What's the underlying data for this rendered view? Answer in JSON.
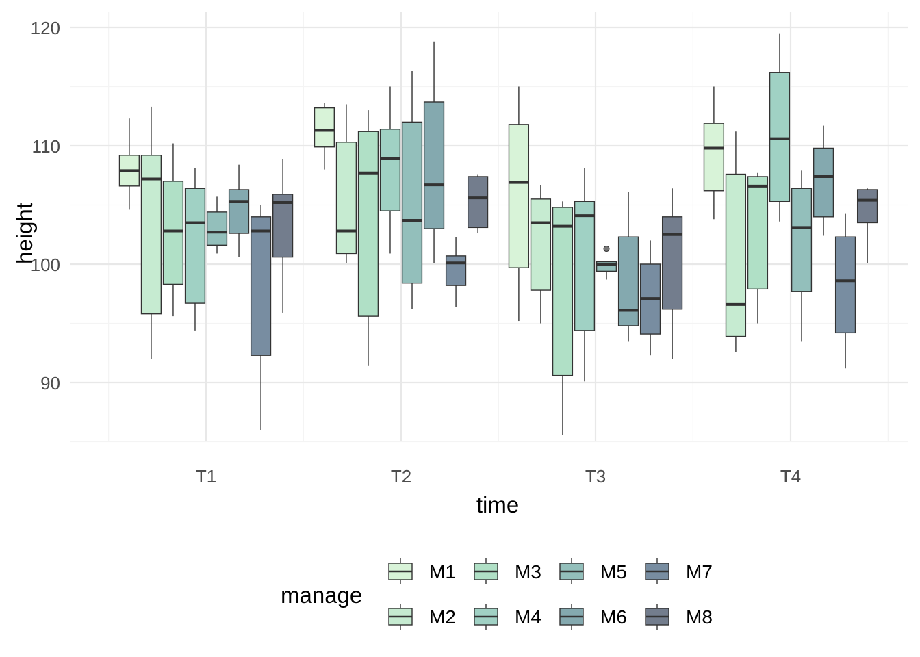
{
  "chart_data": {
    "type": "boxplot",
    "title": "",
    "xlabel": "time",
    "ylabel": "height",
    "categories": [
      "T1",
      "T2",
      "T3",
      "T4"
    ],
    "ylim": [
      84,
      120.5
    ],
    "yticks": [
      90,
      100,
      110,
      120
    ],
    "grid": true,
    "legend": {
      "title": "manage",
      "position": "bottom"
    },
    "series": [
      {
        "name": "M1",
        "color": "#d8f3d8",
        "boxes": [
          {
            "min": 104.6,
            "q1": 106.6,
            "median": 107.9,
            "q3": 109.2,
            "max": 112.3
          },
          {
            "min": 108.0,
            "q1": 109.9,
            "median": 111.3,
            "q3": 113.2,
            "max": 113.6
          },
          {
            "min": 95.2,
            "q1": 99.7,
            "median": 106.9,
            "q3": 111.8,
            "max": 115.0
          },
          {
            "min": 103.8,
            "q1": 106.2,
            "median": 109.8,
            "q3": 111.9,
            "max": 115.0
          }
        ]
      },
      {
        "name": "M2",
        "color": "#c6ebd1",
        "boxes": [
          {
            "min": 92.0,
            "q1": 95.8,
            "median": 107.2,
            "q3": 109.2,
            "max": 113.3
          },
          {
            "min": 100.1,
            "q1": 100.9,
            "median": 102.8,
            "q3": 110.3,
            "max": 113.5
          },
          {
            "min": 95.0,
            "q1": 97.8,
            "median": 103.5,
            "q3": 105.5,
            "max": 106.7
          },
          {
            "min": 92.6,
            "q1": 93.9,
            "median": 96.6,
            "q3": 107.6,
            "max": 111.2
          }
        ]
      },
      {
        "name": "M3",
        "color": "#b0e0c6",
        "boxes": [
          {
            "min": 95.6,
            "q1": 98.3,
            "median": 102.8,
            "q3": 107.0,
            "max": 110.2
          },
          {
            "min": 91.4,
            "q1": 95.6,
            "median": 107.7,
            "q3": 111.2,
            "max": 113.0
          },
          {
            "min": 85.6,
            "q1": 90.6,
            "median": 103.2,
            "q3": 104.8,
            "max": 105.3
          },
          {
            "min": 95.0,
            "q1": 97.9,
            "median": 106.6,
            "q3": 107.4,
            "max": 107.7
          }
        ]
      },
      {
        "name": "M4",
        "color": "#a0d1c4",
        "boxes": [
          {
            "min": 94.4,
            "q1": 96.7,
            "median": 103.5,
            "q3": 106.4,
            "max": 108.1
          },
          {
            "min": 100.9,
            "q1": 104.5,
            "median": 108.9,
            "q3": 111.4,
            "max": 115.0
          },
          {
            "min": 90.1,
            "q1": 94.4,
            "median": 104.1,
            "q3": 105.3,
            "max": 108.1
          },
          {
            "min": 103.6,
            "q1": 105.3,
            "median": 110.6,
            "q3": 116.2,
            "max": 119.5
          }
        ]
      },
      {
        "name": "M5",
        "color": "#93bfbb",
        "boxes": [
          {
            "min": 100.9,
            "q1": 101.6,
            "median": 102.7,
            "q3": 104.4,
            "max": 105.7
          },
          {
            "min": 96.2,
            "q1": 98.4,
            "median": 103.7,
            "q3": 112.0,
            "max": 116.3
          },
          {
            "min": 98.7,
            "q1": 99.4,
            "median": 100.0,
            "q3": 100.2,
            "max": 100.2,
            "outliers": [
              101.3
            ]
          },
          {
            "min": 93.5,
            "q1": 97.7,
            "median": 103.1,
            "q3": 106.4,
            "max": 107.9
          }
        ]
      },
      {
        "name": "M6",
        "color": "#84a9af",
        "boxes": [
          {
            "min": 100.6,
            "q1": 102.6,
            "median": 105.3,
            "q3": 106.3,
            "max": 108.4
          },
          {
            "min": 100.1,
            "q1": 103.0,
            "median": 106.7,
            "q3": 113.7,
            "max": 118.8
          },
          {
            "min": 93.5,
            "q1": 94.8,
            "median": 96.1,
            "q3": 102.3,
            "max": 106.1
          },
          {
            "min": 102.4,
            "q1": 104.0,
            "median": 107.4,
            "q3": 109.8,
            "max": 111.7
          }
        ]
      },
      {
        "name": "M7",
        "color": "#788da1",
        "boxes": [
          {
            "min": 86.0,
            "q1": 92.3,
            "median": 102.8,
            "q3": 104.0,
            "max": 105.0
          },
          {
            "min": 96.4,
            "q1": 98.2,
            "median": 100.1,
            "q3": 100.7,
            "max": 102.3
          },
          {
            "min": 92.3,
            "q1": 94.1,
            "median": 97.1,
            "q3": 100.0,
            "max": 102.0
          },
          {
            "min": 91.2,
            "q1": 94.2,
            "median": 98.6,
            "q3": 102.3,
            "max": 104.3
          }
        ]
      },
      {
        "name": "M8",
        "color": "#737d8d",
        "boxes": [
          {
            "min": 95.9,
            "q1": 100.6,
            "median": 105.2,
            "q3": 105.9,
            "max": 108.9
          },
          {
            "min": 102.6,
            "q1": 103.1,
            "median": 105.6,
            "q3": 107.4,
            "max": 107.6
          },
          {
            "min": 92.0,
            "q1": 96.2,
            "median": 102.5,
            "q3": 104.0,
            "max": 106.4
          },
          {
            "min": 100.1,
            "q1": 103.5,
            "median": 105.4,
            "q3": 106.3,
            "max": 106.4
          }
        ]
      }
    ]
  }
}
